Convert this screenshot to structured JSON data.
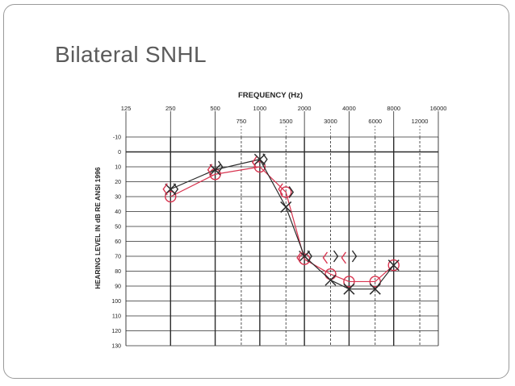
{
  "slide": {
    "title": "Bilateral SNHL"
  },
  "chart_data": {
    "type": "line",
    "title": "FREQUENCY (Hz)",
    "ylabel": "HEARING LEVEL IN dB RE ANSI 1996",
    "x_scale": "log2",
    "xlim": [
      125,
      16000
    ],
    "ylim": [
      -10,
      130
    ],
    "y_inverted": true,
    "grid": true,
    "x_ticks_major": [
      "125",
      "250",
      "500",
      "1000",
      "2000",
      "4000",
      "8000",
      "16000"
    ],
    "x_ticks_mid": [
      "750",
      "1500",
      "3000",
      "6000",
      "12000"
    ],
    "y_ticks": [
      "-10",
      "0",
      "10",
      "20",
      "30",
      "40",
      "50",
      "60",
      "70",
      "80",
      "90",
      "100",
      "110",
      "120",
      "130"
    ],
    "colors": {
      "right_ear": "#d8344f",
      "left_ear": "#2b2b2b",
      "grid": "#2b2b2b"
    },
    "series": [
      {
        "symbol": "circle",
        "color": "right_ear",
        "x": [
          250,
          500,
          1000,
          1500,
          2000,
          3000,
          4000,
          6000,
          8000
        ],
        "y": [
          30,
          15,
          10,
          27,
          72,
          82,
          87,
          87,
          76
        ]
      },
      {
        "symbol": "cross",
        "color": "left_ear",
        "x": [
          250,
          500,
          1000,
          1500,
          2000,
          3000,
          4000,
          6000,
          8000
        ],
        "y": [
          25,
          12,
          5,
          37,
          70,
          86,
          92,
          92,
          76
        ]
      }
    ],
    "bone_markers": [
      {
        "symbol": "<",
        "color": "right_ear",
        "x": 250,
        "y": 25
      },
      {
        "symbol": ">",
        "color": "left_ear",
        "x": 250,
        "y": 25
      },
      {
        "symbol": "<",
        "color": "right_ear",
        "x": 500,
        "y": 12
      },
      {
        "symbol": ">",
        "color": "left_ear",
        "x": 500,
        "y": 10
      },
      {
        "symbol": "<",
        "color": "right_ear",
        "x": 1000,
        "y": 7
      },
      {
        "symbol": ">",
        "color": "left_ear",
        "x": 1000,
        "y": 5
      },
      {
        "symbol": "<",
        "color": "right_ear",
        "x": 1500,
        "y": 25
      },
      {
        "symbol": ">",
        "color": "left_ear",
        "x": 1500,
        "y": 27
      },
      {
        "symbol": "<",
        "color": "right_ear",
        "x": 2000,
        "y": 71
      },
      {
        "symbol": ">",
        "color": "left_ear",
        "x": 2000,
        "y": 70
      },
      {
        "symbol": "<",
        "color": "right_ear",
        "x": 3000,
        "y": 71
      },
      {
        "symbol": ">",
        "color": "left_ear",
        "x": 3000,
        "y": 70
      },
      {
        "symbol": "<",
        "color": "right_ear",
        "x": 4000,
        "y": 71
      },
      {
        "symbol": ">",
        "color": "left_ear",
        "x": 4000,
        "y": 70
      }
    ]
  }
}
